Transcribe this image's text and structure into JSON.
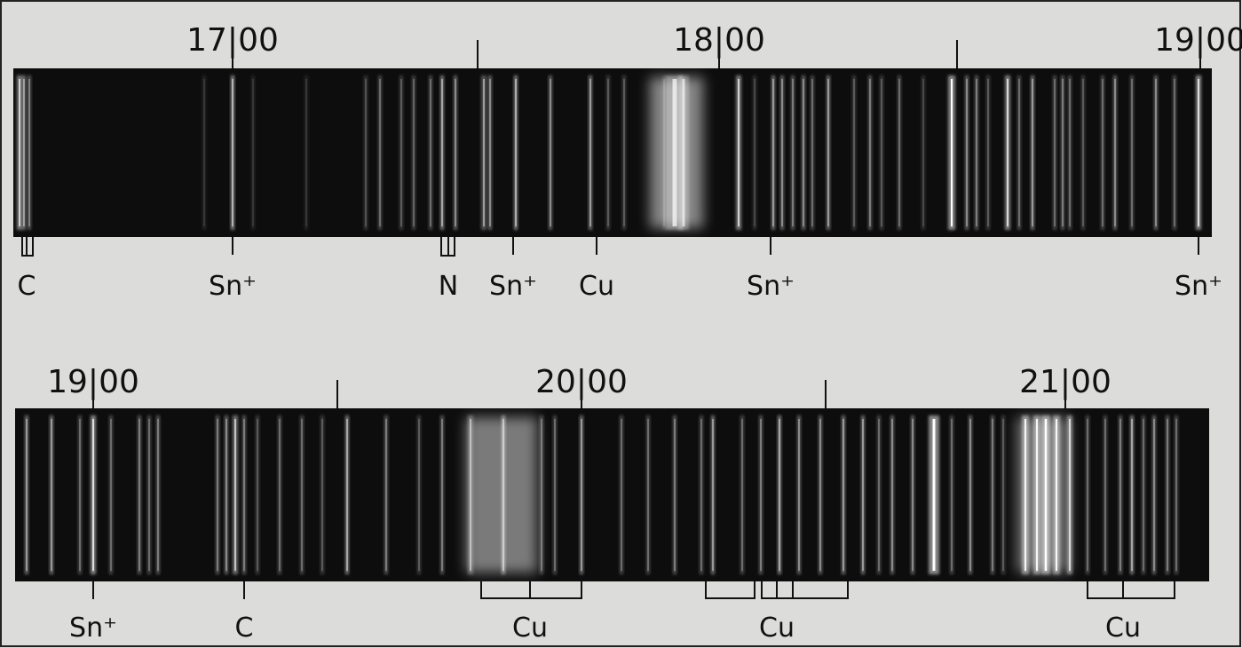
{
  "panels": [
    {
      "scale_labels": [
        "17|00",
        "18|00",
        "19|00"
      ],
      "line_labels": [
        "C",
        "Sn⁺",
        "N",
        "Sn⁺",
        "Cu",
        "Sn⁺",
        "Sn⁺"
      ]
    },
    {
      "scale_labels": [
        "19|00",
        "20|00",
        "21|00"
      ],
      "line_labels": [
        "Sn⁺",
        "C",
        "Cu",
        "Cu",
        "Cu"
      ]
    }
  ]
}
